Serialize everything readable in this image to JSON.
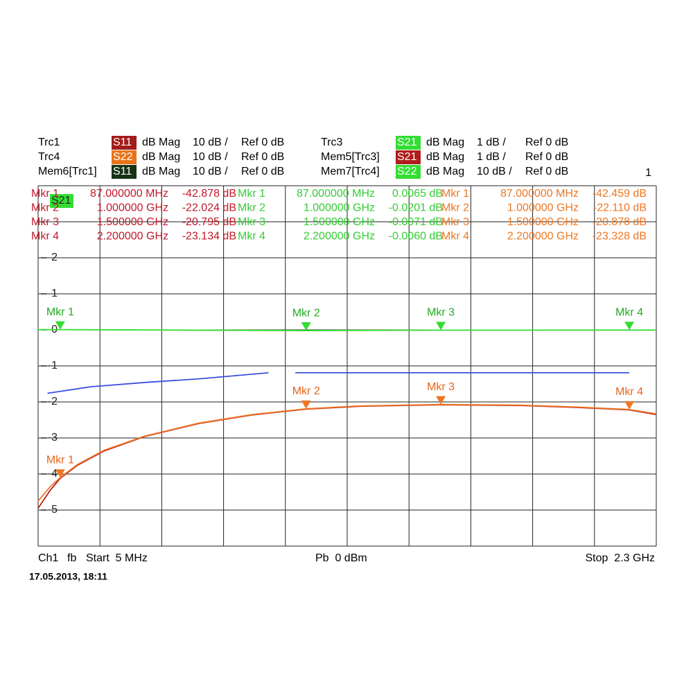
{
  "header": {
    "traces": [
      {
        "name": "Trc1",
        "param": "S11",
        "param_color": "#a31b1b",
        "format": "dB Mag",
        "scale": "10 dB /",
        "ref": "Ref 0 dB"
      },
      {
        "name": "Trc4",
        "param": "S22",
        "param_color": "#e8731a",
        "format": "dB Mag",
        "scale": "10 dB /",
        "ref": "Ref 0 dB"
      },
      {
        "name": "Mem6[Trc1]",
        "param": "S11",
        "param_color": "#163316",
        "format": "dB Mag",
        "scale": "10 dB /",
        "ref": "Ref 0 dB"
      },
      {
        "name": "Trc3",
        "param": "S21",
        "param_color": "#33dd33",
        "format": "dB Mag",
        "scale": "1 dB /",
        "ref": "Ref 0 dB"
      },
      {
        "name": "Mem5[Trc3]",
        "param": "S21",
        "param_color": "#b01c1c",
        "format": "dB Mag",
        "scale": "1 dB /",
        "ref": "Ref 0 dB"
      },
      {
        "name": "Mem7[Trc4]",
        "param": "S22",
        "param_color": "#33dd33",
        "format": "dB Mag",
        "scale": "10 dB /",
        "ref": "Ref 0 dB"
      }
    ],
    "window_number": "1"
  },
  "chart_data": {
    "type": "line",
    "trace_label": "S21",
    "xlim": [
      0.005,
      2.3
    ],
    "ylim": [
      -6,
      4
    ],
    "yticks": [
      -5,
      -4,
      -3,
      -2,
      -1,
      0,
      1,
      2
    ],
    "series": [
      {
        "color": "#3b4fe0",
        "x": [
          0.04,
          0.2,
          0.4,
          0.6,
          0.86,
          0.9,
          0.96,
          2.2
        ],
        "values": [
          -1.76,
          -1.58,
          -1.46,
          -1.36,
          -1.19,
          null,
          -1.19,
          -1.19
        ]
      },
      {
        "color": "#b81c1c",
        "x": [
          0.005,
          0.05,
          0.087,
          0.15,
          0.25,
          0.4,
          0.6,
          0.8,
          1.0,
          1.2,
          1.5,
          1.8,
          2.0,
          2.2,
          2.3
        ],
        "values": [
          -4.95,
          -4.45,
          -4.12,
          -3.76,
          -3.36,
          -2.96,
          -2.6,
          -2.36,
          -2.2,
          -2.12,
          -2.08,
          -2.1,
          -2.15,
          -2.22,
          -2.35
        ]
      },
      {
        "color": "#ee7722",
        "x": [
          0.005,
          0.05,
          0.087,
          0.15,
          0.25,
          0.4,
          0.6,
          0.8,
          1.0,
          1.2,
          1.5,
          1.8,
          2.0,
          2.2,
          2.3
        ],
        "values": [
          -4.75,
          -4.35,
          -4.1,
          -3.74,
          -3.34,
          -2.95,
          -2.59,
          -2.35,
          -2.19,
          -2.11,
          -2.07,
          -2.09,
          -2.14,
          -2.21,
          -2.33
        ]
      },
      {
        "color": "#33dd33",
        "x": [
          0.005,
          0.087,
          1.0,
          1.5,
          2.2,
          2.3
        ],
        "values": [
          0.006,
          0.0065,
          -0.0201,
          -0.0071,
          -0.006,
          -0.006
        ]
      }
    ],
    "markers": [
      {
        "color": "#33dd33",
        "label_color": "#22aa22",
        "x": [
          0.087,
          1.0,
          1.5,
          2.2
        ],
        "values": [
          0.0065,
          -0.0201,
          -0.0071,
          -0.006
        ],
        "labels": [
          "Mkr 1",
          "Mkr 2",
          "Mkr 3",
          "Mkr 4"
        ]
      },
      {
        "color": "#ee7722",
        "label_color": "#e8641a",
        "x": [
          0.087,
          1.0,
          1.5,
          2.2
        ],
        "values": [
          -4.1,
          -2.19,
          -2.07,
          -2.21
        ],
        "labels": [
          "Mkr 1",
          "Mkr 2",
          "Mkr 3",
          "Mkr 4"
        ]
      }
    ],
    "marker_tables": [
      {
        "color": "#c0182a",
        "rows": [
          [
            "Mkr 1",
            "87.000000 MHz",
            "-42.878 dB"
          ],
          [
            "Mkr 2",
            "1.000000 GHz",
            "-22.024 dB"
          ],
          [
            "Mkr 3",
            "1.500000 GHz",
            "-20.795 dB"
          ],
          [
            "Mkr 4",
            "2.200000 GHz",
            "-23.134 dB"
          ]
        ]
      },
      {
        "color": "#33cc33",
        "rows": [
          [
            "Mkr 1",
            "87.000000 MHz",
            "0.0065 dB"
          ],
          [
            "Mkr 2",
            "1.000000 GHz",
            "-0.0201 dB"
          ],
          [
            "Mkr 3",
            "1.500000 GHz",
            "-0.0071 dB"
          ],
          [
            "Mkr 4",
            "2.200000 GHz",
            "-0.0060 dB"
          ]
        ]
      },
      {
        "color": "#ee7722",
        "rows": [
          [
            "Mkr 1",
            "87.000000 MHz",
            "-42.459 dB"
          ],
          [
            "Mkr 2",
            "1.000000 GHz",
            "-22.110 dB"
          ],
          [
            "Mkr 3",
            "1.500000 GHz",
            "-20.878 dB"
          ],
          [
            "Mkr 4",
            "2.200000 GHz",
            "-23.328 dB"
          ]
        ]
      }
    ]
  },
  "footer": {
    "channel": "Ch1",
    "mode": "fb",
    "start": "Start  5 MHz",
    "power": "Pb  0 dBm",
    "stop": "Stop  2.3 GHz"
  },
  "timestamp": "17.05.2013, 18:11"
}
